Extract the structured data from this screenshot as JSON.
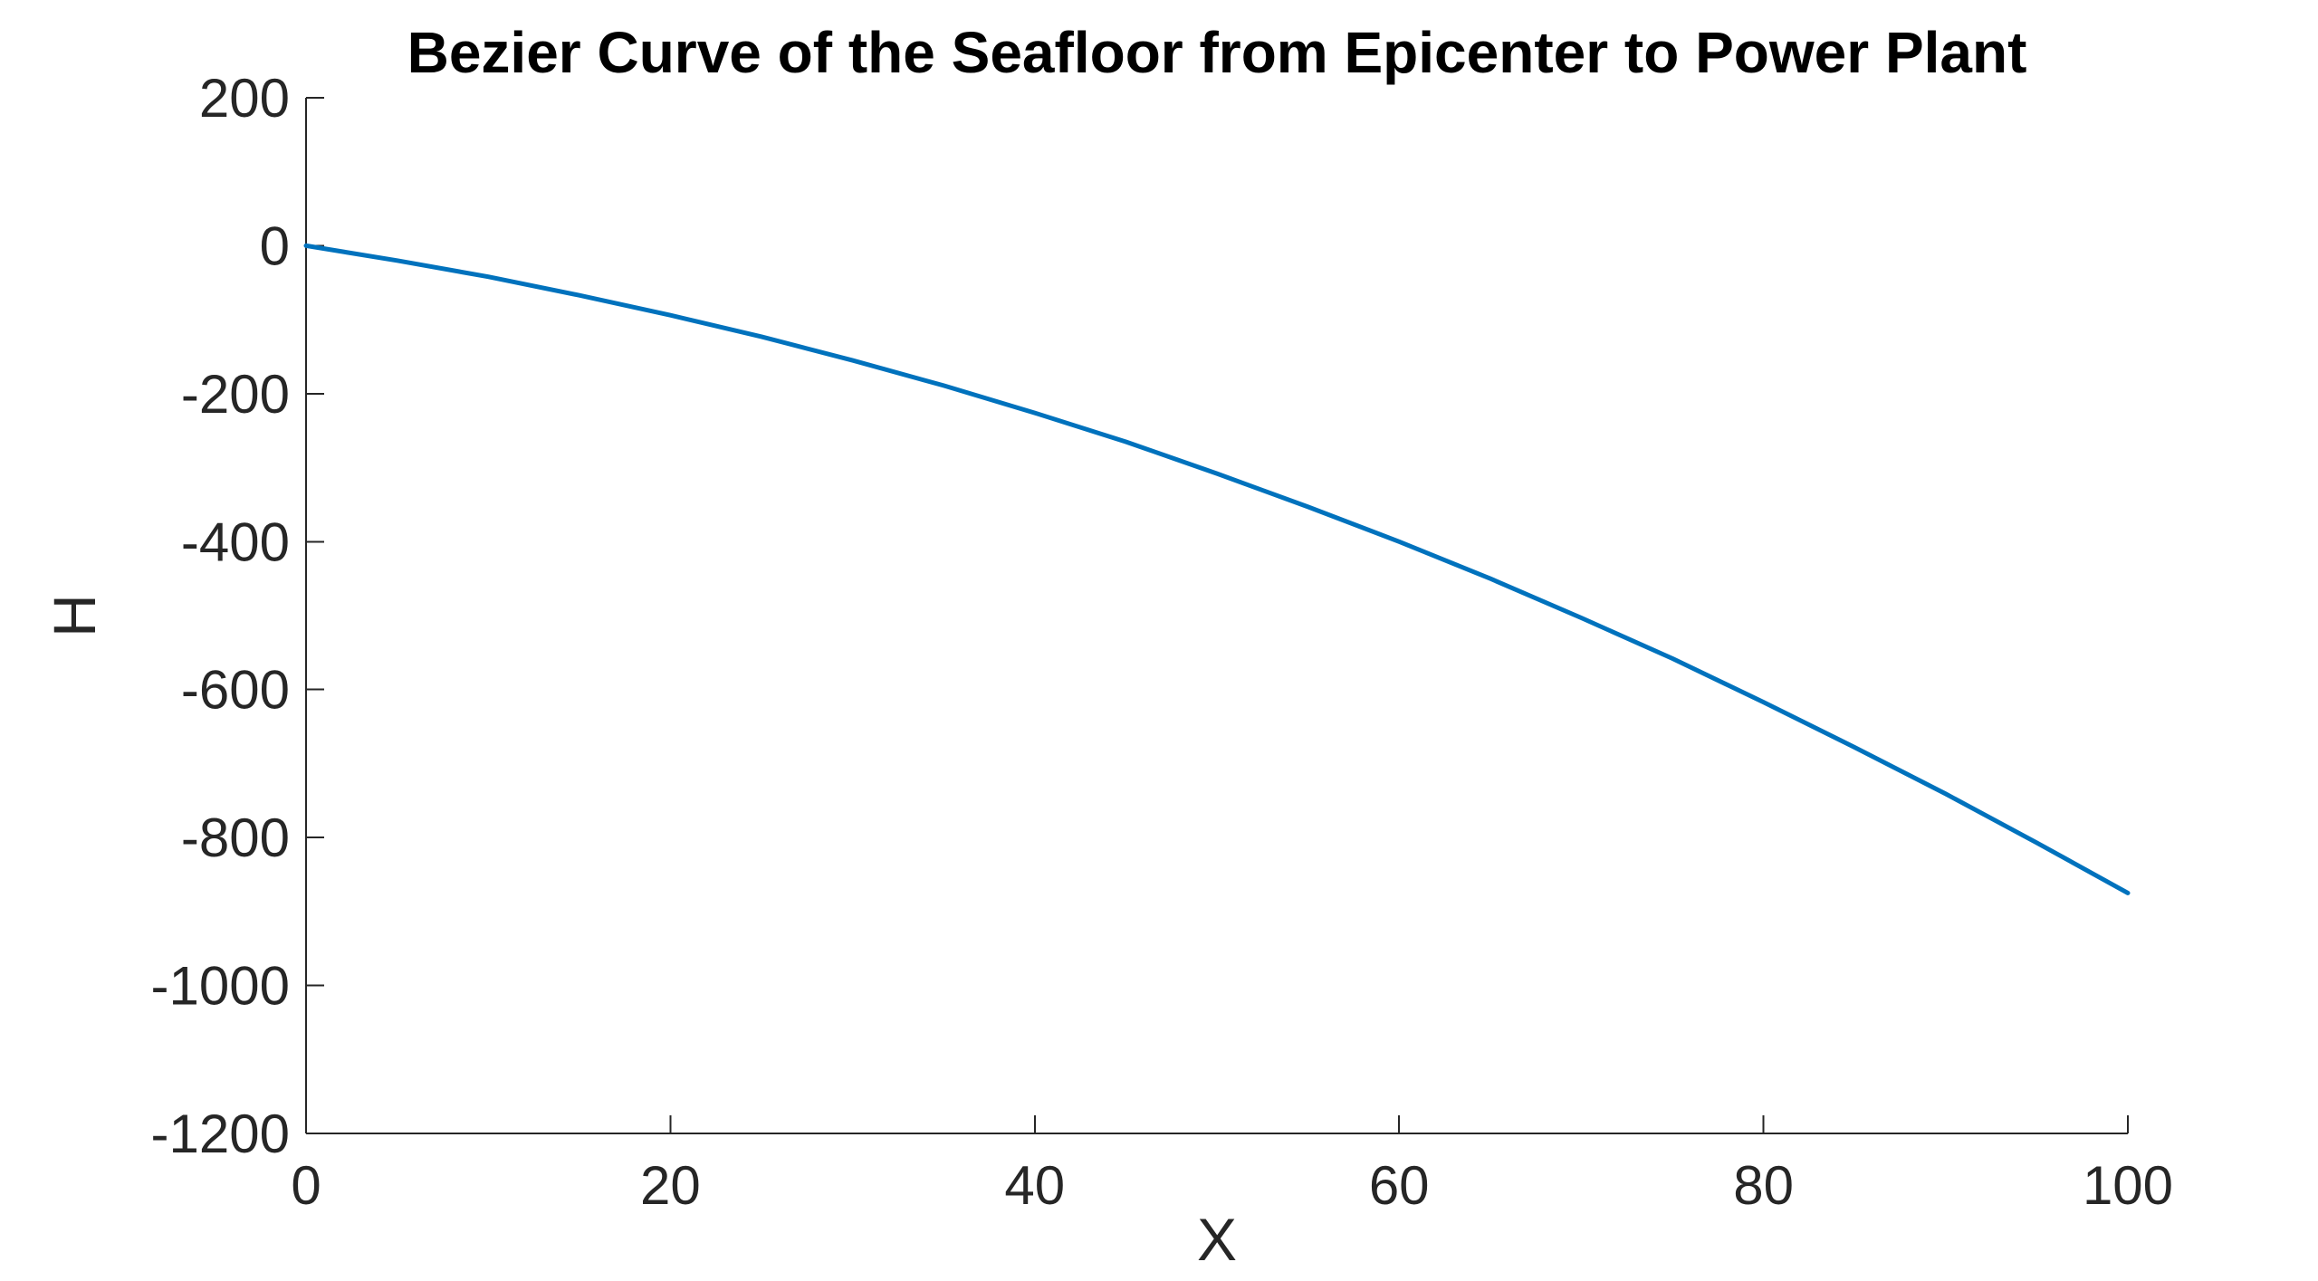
{
  "chart_data": {
    "type": "line",
    "title": "Bezier Curve of the Seafloor from Epicenter to Power Plant",
    "xlabel": "X",
    "ylabel": "H",
    "xlim": [
      0,
      100
    ],
    "ylim": [
      -1200,
      200
    ],
    "xticks": [
      0,
      20,
      40,
      60,
      80,
      100
    ],
    "xtick_labels": [
      "0",
      "20",
      "40",
      "60",
      "80",
      "100"
    ],
    "yticks": [
      200,
      0,
      -200,
      -400,
      -600,
      -800,
      -1000,
      -1200
    ],
    "ytick_labels": [
      "200",
      "0",
      "-200",
      "-400",
      "-600",
      "-800",
      "-1000",
      "-1200"
    ],
    "grid": false,
    "legend": "none",
    "series": [
      {
        "color": "#0072BD",
        "x": [
          0,
          5,
          10,
          15,
          20,
          25,
          30,
          35,
          40,
          45,
          50,
          55,
          60,
          65,
          70,
          75,
          80,
          85,
          90,
          95,
          100
        ],
        "y": [
          0,
          -20,
          -42,
          -67,
          -94,
          -123,
          -155,
          -189,
          -226,
          -265,
          -308,
          -353,
          -400,
          -450,
          -503,
          -558,
          -617,
          -678,
          -741,
          -807,
          -875
        ]
      }
    ]
  }
}
